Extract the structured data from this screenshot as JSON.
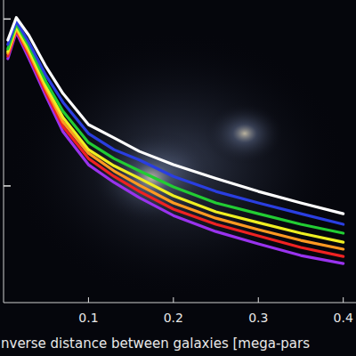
{
  "chart_data": {
    "type": "line",
    "x_label": "nverse distance between galaxies [mega-pars",
    "x": [
      0.005,
      0.015,
      0.03,
      0.05,
      0.07,
      0.1,
      0.13,
      0.16,
      0.2,
      0.25,
      0.3,
      0.35,
      0.4
    ],
    "series": [
      {
        "color": "#ffffff",
        "values": [
          748,
          1020,
          796,
          518,
          358,
          233,
          194,
          161,
          134,
          111,
          92.7,
          79.1,
          68.2
        ]
      },
      {
        "color": "#2a3ee0",
        "values": [
          703,
          968,
          721,
          458,
          317,
          206,
          165,
          143,
          114,
          92.7,
          79.1,
          68.2,
          58.9
        ]
      },
      {
        "color": "#22cc33",
        "values": [
          662,
          933,
          687,
          420,
          280,
          182,
          146,
          123,
          98.6,
          79.1,
          68.2,
          58.9,
          52.1
        ]
      },
      {
        "color": "#eeee22",
        "values": [
          638,
          899,
          653,
          395,
          257,
          165,
          132,
          111,
          87.3,
          70.0,
          60.3,
          52.1,
          46.0
        ]
      },
      {
        "color": "#ff9922",
        "values": [
          622,
          877,
          630,
          381,
          242,
          157,
          123,
          101,
          79.1,
          64.1,
          54.7,
          47.2,
          41.8
        ]
      },
      {
        "color": "#ee2222",
        "values": [
          600,
          857,
          607,
          362,
          227,
          146,
          114,
          92.7,
          72.6,
          58.9,
          50.2,
          42.8,
          37.8
        ]
      },
      {
        "color": "#9933ee",
        "values": [
          578,
          836,
          578,
          345,
          211,
          134,
          105,
          85.1,
          66.5,
          53.3,
          45.0,
          38.3,
          34.3
        ]
      }
    ],
    "xlim": [
      0,
      0.415
    ],
    "xticks": [
      0.1,
      0.2,
      0.3,
      0.4
    ],
    "ylim": [
      20,
      1300
    ],
    "yticks": [
      100,
      1000
    ],
    "log": "y",
    "grid": false,
    "tick_labels": "x"
  }
}
